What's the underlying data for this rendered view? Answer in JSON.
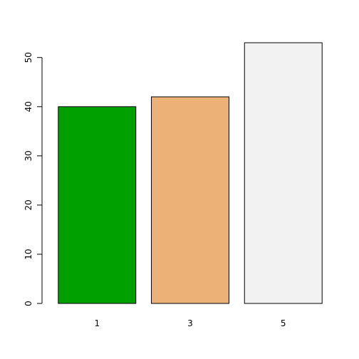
{
  "chart_data": {
    "type": "bar",
    "title": "",
    "xlabel": "",
    "ylabel": "",
    "categories": [
      "1",
      "3",
      "5"
    ],
    "values": [
      40,
      42,
      53
    ],
    "colors": [
      "#00a000",
      "#ecb176",
      "#f2f2f2"
    ],
    "ylim": [
      0,
      53
    ],
    "yticks": [
      0,
      10,
      20,
      30,
      40,
      50
    ],
    "grid": false,
    "legend": "none"
  }
}
